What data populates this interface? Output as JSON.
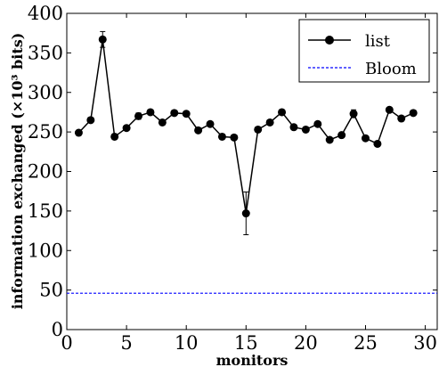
{
  "chart_data": {
    "type": "line",
    "xlabel": "monitors",
    "ylabel": "information exchanged (×10³ bits)",
    "xlim": [
      0,
      31
    ],
    "ylim": [
      0,
      400
    ],
    "xticks": [
      0,
      5,
      10,
      15,
      20,
      25,
      30
    ],
    "yticks": [
      0,
      50,
      100,
      150,
      200,
      250,
      300,
      350,
      400
    ],
    "legend_position": "top-right",
    "grid": false,
    "series": [
      {
        "name": "list",
        "style": "solid-marker",
        "color": "#000000",
        "x": [
          1,
          2,
          3,
          4,
          5,
          6,
          7,
          8,
          9,
          10,
          11,
          12,
          13,
          14,
          15,
          16,
          17,
          18,
          19,
          20,
          21,
          22,
          23,
          24,
          25,
          26,
          27,
          28,
          29
        ],
        "y": [
          249,
          265,
          367,
          244,
          255,
          270,
          275,
          262,
          274,
          273,
          252,
          260,
          244,
          243,
          147,
          253,
          262,
          275,
          256,
          253,
          260,
          240,
          246,
          273,
          242,
          235,
          278,
          267,
          274
        ],
        "err": [
          0,
          0,
          10,
          0,
          0,
          4,
          0,
          0,
          0,
          0,
          0,
          0,
          0,
          0,
          27,
          0,
          0,
          0,
          0,
          0,
          0,
          0,
          0,
          5,
          0,
          0,
          0,
          0,
          0
        ]
      },
      {
        "name": "Bloom",
        "style": "dashed",
        "color": "#0000ff",
        "x": [
          0,
          31
        ],
        "y": [
          46,
          46
        ]
      }
    ]
  }
}
